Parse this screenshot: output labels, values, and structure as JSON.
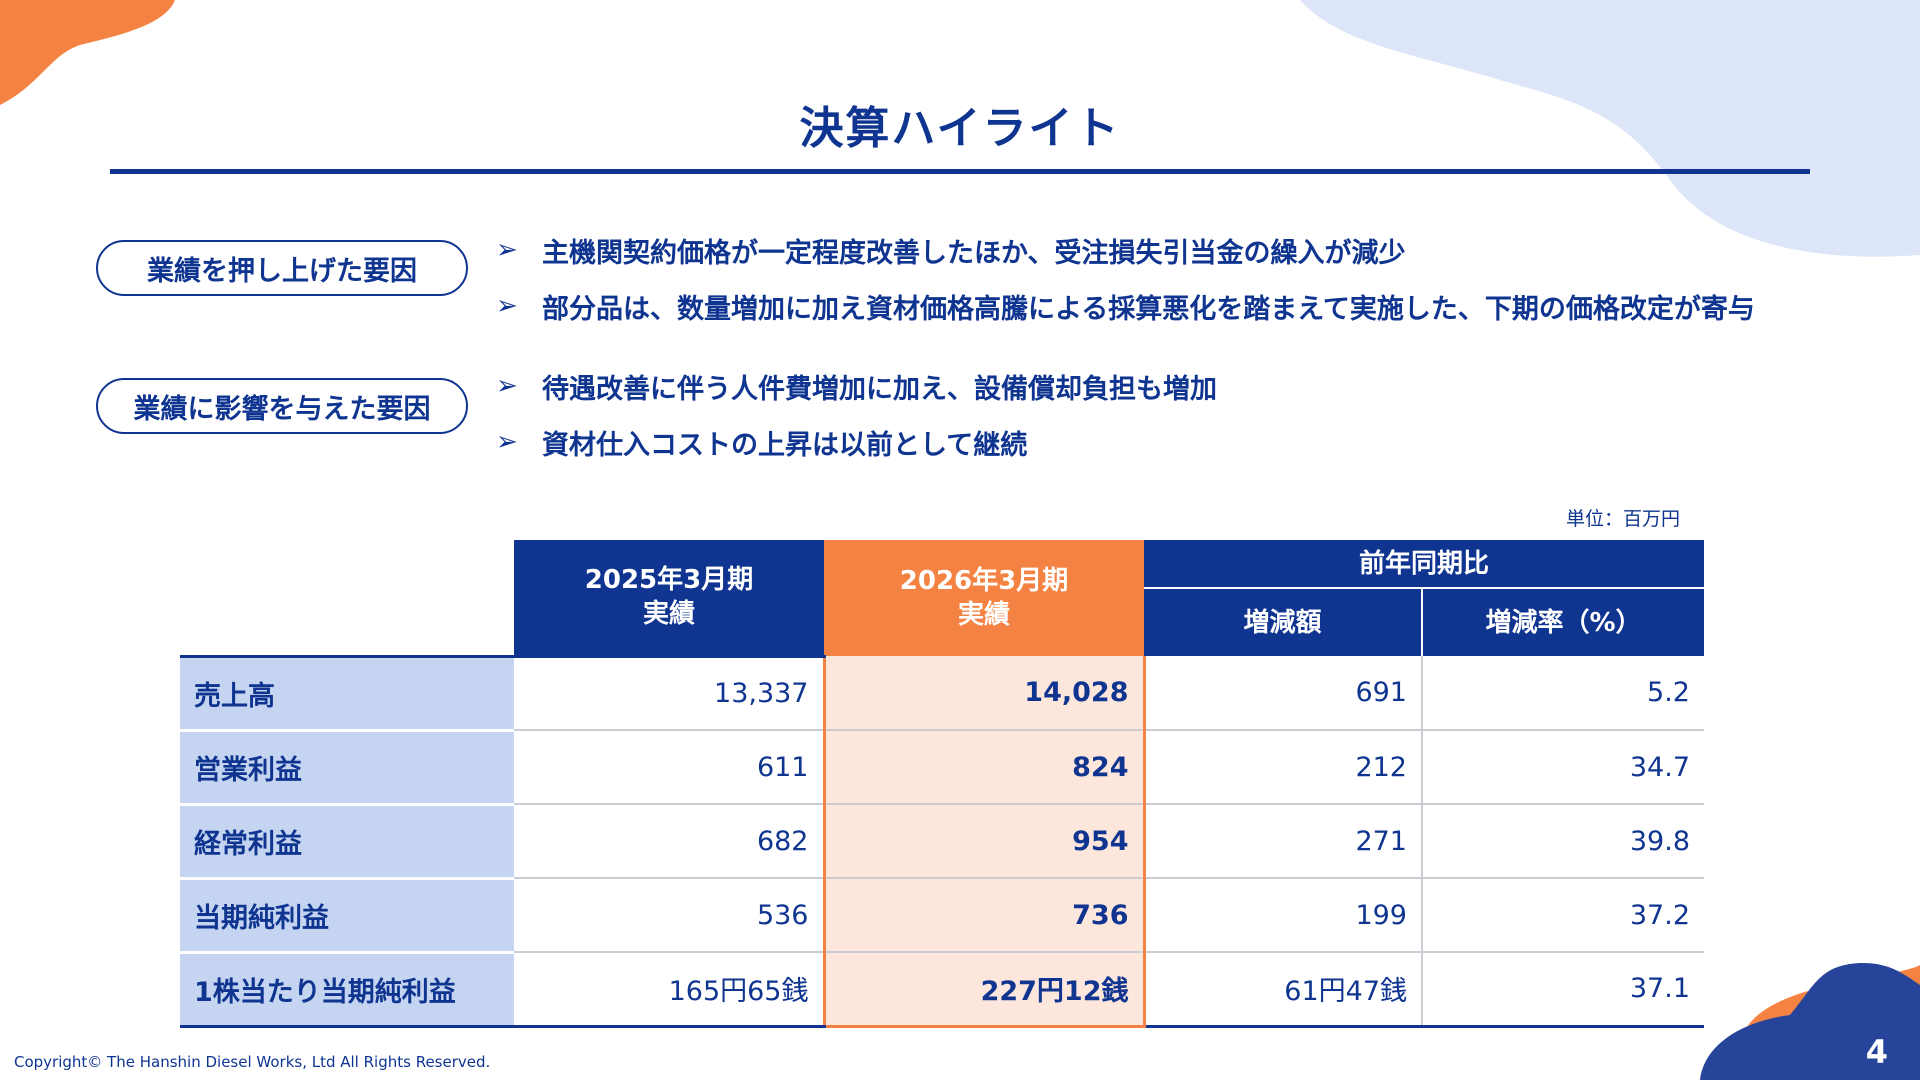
{
  "title": "決算ハイライト",
  "factors": [
    {
      "label": "業績を押し上げた要因",
      "bullets": [
        "主機関契約価格が一定程度改善したほか、受注損失引当金の繰入が減少",
        "部分品は、数量増加に加え資材価格高騰による採算悪化を踏まえて実施した、下期の価格改定が寄与"
      ]
    },
    {
      "label": "業績に影響を与えた要因",
      "bullets": [
        "待遇改善に伴う人件費増加に加え、設備償却負担も増加",
        "資材仕入コストの上昇は以前として継続"
      ]
    }
  ],
  "bullet_marker": "➢",
  "unit": "単位：百万円",
  "table": {
    "col_prev": {
      "line1": "2025年3月期",
      "line2": "実績"
    },
    "col_curr": {
      "line1": "2026年3月期",
      "line2": "実績"
    },
    "col_yoy": "前年同期比",
    "col_diff": "増減額",
    "col_rate": "増減率（%）",
    "rows": [
      {
        "label": "売上高",
        "prev": "13,337",
        "curr": "14,028",
        "diff": "691",
        "rate": "5.2"
      },
      {
        "label": "営業利益",
        "prev": "611",
        "curr": "824",
        "diff": "212",
        "rate": "34.7"
      },
      {
        "label": "経常利益",
        "prev": "682",
        "curr": "954",
        "diff": "271",
        "rate": "39.8"
      },
      {
        "label": "当期純利益",
        "prev": "536",
        "curr": "736",
        "diff": "199",
        "rate": "37.2"
      },
      {
        "label": "1株当たり当期純利益",
        "prev": "165円65銭",
        "curr": "227円12銭",
        "diff": "61円47銭",
        "rate": "37.1"
      }
    ]
  },
  "copyright": "Copyright© The Hanshin Diesel Works, Ltd All Rights Reserved.",
  "page_number": "4",
  "colors": {
    "primary": "#0f3591",
    "accent_orange": "#f48343",
    "highlight_bg": "#fde6db",
    "row_label_bg": "#c5d4f1",
    "decor_light_blue": "#dce6f8"
  }
}
